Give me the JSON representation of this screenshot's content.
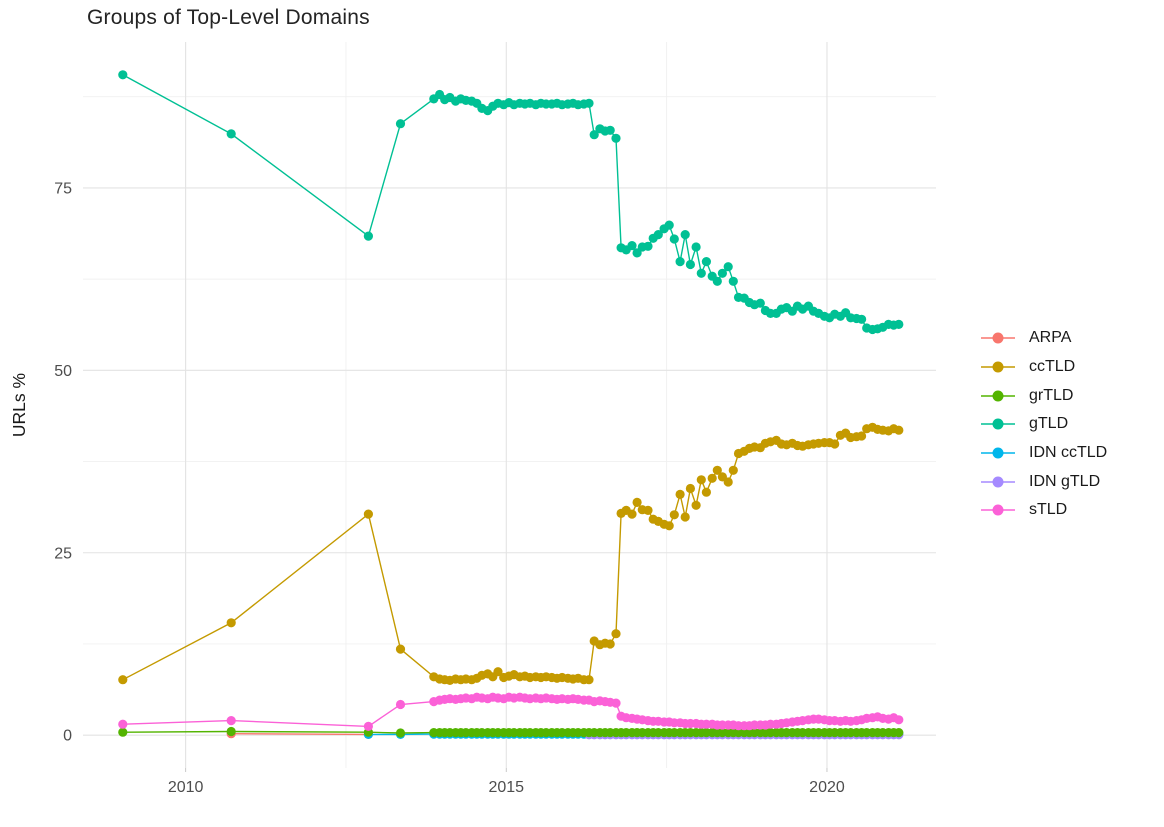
{
  "chart_data": {
    "type": "line",
    "title": "Groups of Top-Level Domains",
    "xlabel": "",
    "ylabel": "URLs %",
    "grid": true,
    "legend_position": "right",
    "x_domain": [
      2008.4,
      2021.7
    ],
    "y_domain": [
      -4.5,
      95
    ],
    "x_ticks": [
      {
        "value": 2010,
        "label": "2010"
      },
      {
        "value": 2015,
        "label": "2015"
      },
      {
        "value": 2020,
        "label": "2020"
      }
    ],
    "x_minor_ticks": [
      2012.5,
      2017.5
    ],
    "y_ticks": [
      {
        "value": 0,
        "label": "0"
      },
      {
        "value": 25,
        "label": "25"
      },
      {
        "value": 50,
        "label": "50"
      },
      {
        "value": 75,
        "label": "75"
      }
    ],
    "y_minor_ticks": [
      12.5,
      37.5,
      62.5,
      87.5
    ],
    "legend": [
      {
        "label": "ARPA",
        "color": "#F8766D"
      },
      {
        "label": "ccTLD",
        "color": "#C49A00"
      },
      {
        "label": "grTLD",
        "color": "#53B400"
      },
      {
        "label": "gTLD",
        "color": "#00C094"
      },
      {
        "label": "IDN ccTLD",
        "color": "#00B6EB"
      },
      {
        "label": "IDN gTLD",
        "color": "#A58AFF"
      },
      {
        "label": "sTLD",
        "color": "#FB61D7"
      }
    ],
    "dense_x": [
      2013.87,
      2013.96,
      2014.04,
      2014.12,
      2014.21,
      2014.29,
      2014.37,
      2014.46,
      2014.54,
      2014.62,
      2014.71,
      2014.79,
      2014.87,
      2014.96,
      2015.04,
      2015.12,
      2015.21,
      2015.29,
      2015.37,
      2015.46,
      2015.54,
      2015.62,
      2015.71,
      2015.79,
      2015.87,
      2015.96,
      2016.04,
      2016.12,
      2016.21,
      2016.29,
      2016.37,
      2016.46,
      2016.54,
      2016.62,
      2016.71,
      2016.79,
      2016.87,
      2016.96,
      2017.04,
      2017.12,
      2017.21,
      2017.29,
      2017.37,
      2017.46,
      2017.54,
      2017.62,
      2017.71,
      2017.79,
      2017.87,
      2017.96,
      2018.04,
      2018.12,
      2018.21,
      2018.29,
      2018.37,
      2018.46,
      2018.54,
      2018.62,
      2018.71,
      2018.79,
      2018.87,
      2018.96,
      2019.04,
      2019.12,
      2019.21,
      2019.29,
      2019.37,
      2019.46,
      2019.54,
      2019.62,
      2019.71,
      2019.79,
      2019.87,
      2019.96,
      2020.04,
      2020.12,
      2020.21,
      2020.29,
      2020.37,
      2020.46,
      2020.54,
      2020.62,
      2020.71,
      2020.79,
      2020.87,
      2020.96,
      2021.04,
      2021.12
    ],
    "series": [
      {
        "name": "ARPA",
        "color": "#F8766D",
        "pre": [
          [
            2010.71,
            0.2
          ],
          [
            2012.85,
            0.1
          ]
        ]
      },
      {
        "name": "IDN ccTLD",
        "color": "#00B6EB",
        "pre": [
          [
            2012.85,
            0.1
          ],
          [
            2013.35,
            0.1
          ]
        ],
        "values_const": 0.15
      },
      {
        "name": "IDN gTLD",
        "color": "#A58AFF",
        "start_index": 29,
        "values_const": 0.05
      },
      {
        "name": "grTLD",
        "color": "#53B400",
        "pre": [
          [
            2009.02,
            0.4
          ],
          [
            2010.71,
            0.5
          ],
          [
            2012.85,
            0.4
          ],
          [
            2013.35,
            0.3
          ]
        ],
        "values_const": 0.35
      },
      {
        "name": "ccTLD",
        "color": "#C49A00",
        "pre": [
          [
            2009.02,
            7.6
          ],
          [
            2010.71,
            15.4
          ],
          [
            2012.85,
            30.3
          ],
          [
            2013.35,
            11.8
          ]
        ],
        "values": [
          8.0,
          7.7,
          7.6,
          7.5,
          7.7,
          7.6,
          7.7,
          7.6,
          7.8,
          8.2,
          8.4,
          8.0,
          8.7,
          7.9,
          8.1,
          8.3,
          8.0,
          8.1,
          7.9,
          8.0,
          7.9,
          8.0,
          7.9,
          7.8,
          7.9,
          7.8,
          7.7,
          7.8,
          7.6,
          7.6,
          12.9,
          12.4,
          12.6,
          12.5,
          13.9,
          30.4,
          30.8,
          30.3,
          31.9,
          30.9,
          30.8,
          29.6,
          29.3,
          28.9,
          28.7,
          30.2,
          33.0,
          29.9,
          33.8,
          31.5,
          35.0,
          33.3,
          35.2,
          36.3,
          35.4,
          34.7,
          36.3,
          38.6,
          38.9,
          39.3,
          39.5,
          39.4,
          40.0,
          40.2,
          40.4,
          39.9,
          39.8,
          40.0,
          39.7,
          39.6,
          39.8,
          39.9,
          40.0,
          40.1,
          40.1,
          39.9,
          41.1,
          41.4,
          40.8,
          40.9,
          41.0,
          42.0,
          42.2,
          41.9,
          41.8,
          41.7,
          42.0,
          41.8
        ]
      },
      {
        "name": "gTLD",
        "color": "#00C094",
        "pre": [
          [
            2009.02,
            90.5
          ],
          [
            2010.71,
            82.4
          ],
          [
            2012.85,
            68.4
          ],
          [
            2013.35,
            83.8
          ]
        ],
        "values": [
          87.2,
          87.8,
          87.1,
          87.4,
          86.9,
          87.2,
          87.0,
          86.9,
          86.6,
          85.9,
          85.6,
          86.2,
          86.6,
          86.4,
          86.7,
          86.4,
          86.6,
          86.5,
          86.6,
          86.4,
          86.6,
          86.5,
          86.5,
          86.6,
          86.4,
          86.5,
          86.6,
          86.4,
          86.5,
          86.6,
          82.3,
          83.1,
          82.8,
          82.9,
          81.8,
          66.8,
          66.5,
          67.1,
          66.1,
          66.9,
          67.0,
          68.1,
          68.6,
          69.4,
          69.9,
          68.0,
          64.9,
          68.6,
          64.5,
          66.9,
          63.3,
          64.9,
          62.9,
          62.2,
          63.3,
          64.2,
          62.2,
          60.0,
          59.9,
          59.3,
          59.0,
          59.2,
          58.2,
          57.8,
          57.8,
          58.4,
          58.6,
          58.1,
          58.8,
          58.4,
          58.8,
          58.1,
          57.8,
          57.4,
          57.2,
          57.7,
          57.4,
          57.9,
          57.2,
          57.1,
          57.0,
          55.8,
          55.6,
          55.7,
          55.9,
          56.3,
          56.2,
          56.3
        ]
      },
      {
        "name": "sTLD",
        "color": "#FB61D7",
        "pre": [
          [
            2009.02,
            1.5
          ],
          [
            2010.71,
            2.0
          ],
          [
            2012.85,
            1.2
          ],
          [
            2013.35,
            4.2
          ]
        ],
        "values": [
          4.6,
          4.8,
          4.9,
          5.0,
          4.9,
          5.0,
          5.1,
          5.0,
          5.2,
          5.1,
          5.0,
          5.2,
          5.1,
          5.0,
          5.2,
          5.1,
          5.2,
          5.1,
          5.0,
          5.1,
          5.0,
          5.1,
          5.0,
          4.9,
          5.0,
          4.9,
          5.0,
          4.9,
          4.8,
          4.8,
          4.6,
          4.7,
          4.6,
          4.5,
          4.4,
          2.6,
          2.4,
          2.3,
          2.2,
          2.1,
          2.0,
          1.9,
          1.9,
          1.8,
          1.8,
          1.7,
          1.7,
          1.6,
          1.6,
          1.6,
          1.5,
          1.5,
          1.5,
          1.4,
          1.4,
          1.4,
          1.4,
          1.3,
          1.3,
          1.3,
          1.4,
          1.4,
          1.4,
          1.5,
          1.5,
          1.6,
          1.7,
          1.8,
          1.9,
          2.0,
          2.1,
          2.2,
          2.2,
          2.1,
          2.0,
          2.0,
          1.9,
          2.0,
          1.9,
          2.0,
          2.1,
          2.3,
          2.4,
          2.5,
          2.3,
          2.2,
          2.4,
          2.1
        ]
      }
    ]
  }
}
